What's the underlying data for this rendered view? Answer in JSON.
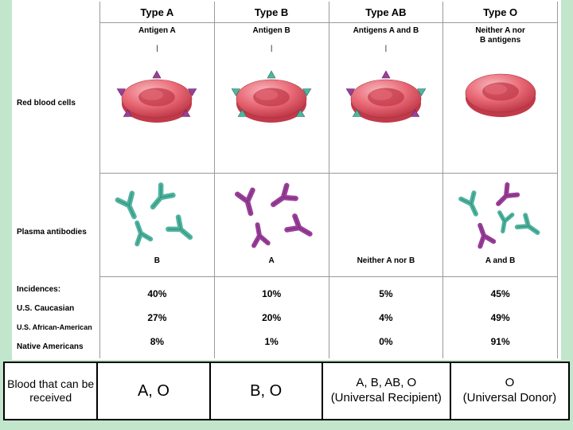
{
  "columns": [
    {
      "type_label": "Type A",
      "antigen_label": "Antigen A",
      "antibody_label": "B",
      "inc": [
        "40%",
        "27%",
        "8%"
      ],
      "antigens": "A",
      "antibodies": "B"
    },
    {
      "type_label": "Type B",
      "antigen_label": "Antigen B",
      "antibody_label": "A",
      "inc": [
        "10%",
        "20%",
        "1%"
      ],
      "antigens": "B",
      "antibodies": "A"
    },
    {
      "type_label": "Type AB",
      "antigen_label": "Antigens A and B",
      "antibody_label": "Neither A nor B",
      "inc": [
        "5%",
        "4%",
        "0%"
      ],
      "antigens": "AB",
      "antibodies": ""
    },
    {
      "type_label": "Type O",
      "antigen_label": "Neither A nor\nB antigens",
      "antibody_label": "A and B",
      "inc": [
        "45%",
        "49%",
        "91%"
      ],
      "antigens": "",
      "antibodies": "AB"
    }
  ],
  "row_labels": {
    "rbc": "Red blood cells",
    "ab": "Plasma antibodies",
    "inc_hdr": "Incidences:",
    "inc": [
      "U.S. Caucasian",
      "U.S. African-American",
      "Native Americans"
    ]
  },
  "bottom": {
    "header": "Blood that can be received",
    "cells": [
      "A, O",
      "B, O",
      "A, B, AB, O\n(Universal Recipient)",
      "O\n(Universal Donor)"
    ]
  },
  "colors": {
    "bg": "#c2e6cc",
    "rbc_top": "#ea6b78",
    "rbc_dark": "#c13a4a",
    "rbc_hi": "#f6b8bd",
    "antB_teal": "#4fb5a0",
    "antA_purple": "#9b3f9b",
    "border": "#9a9a9a"
  }
}
